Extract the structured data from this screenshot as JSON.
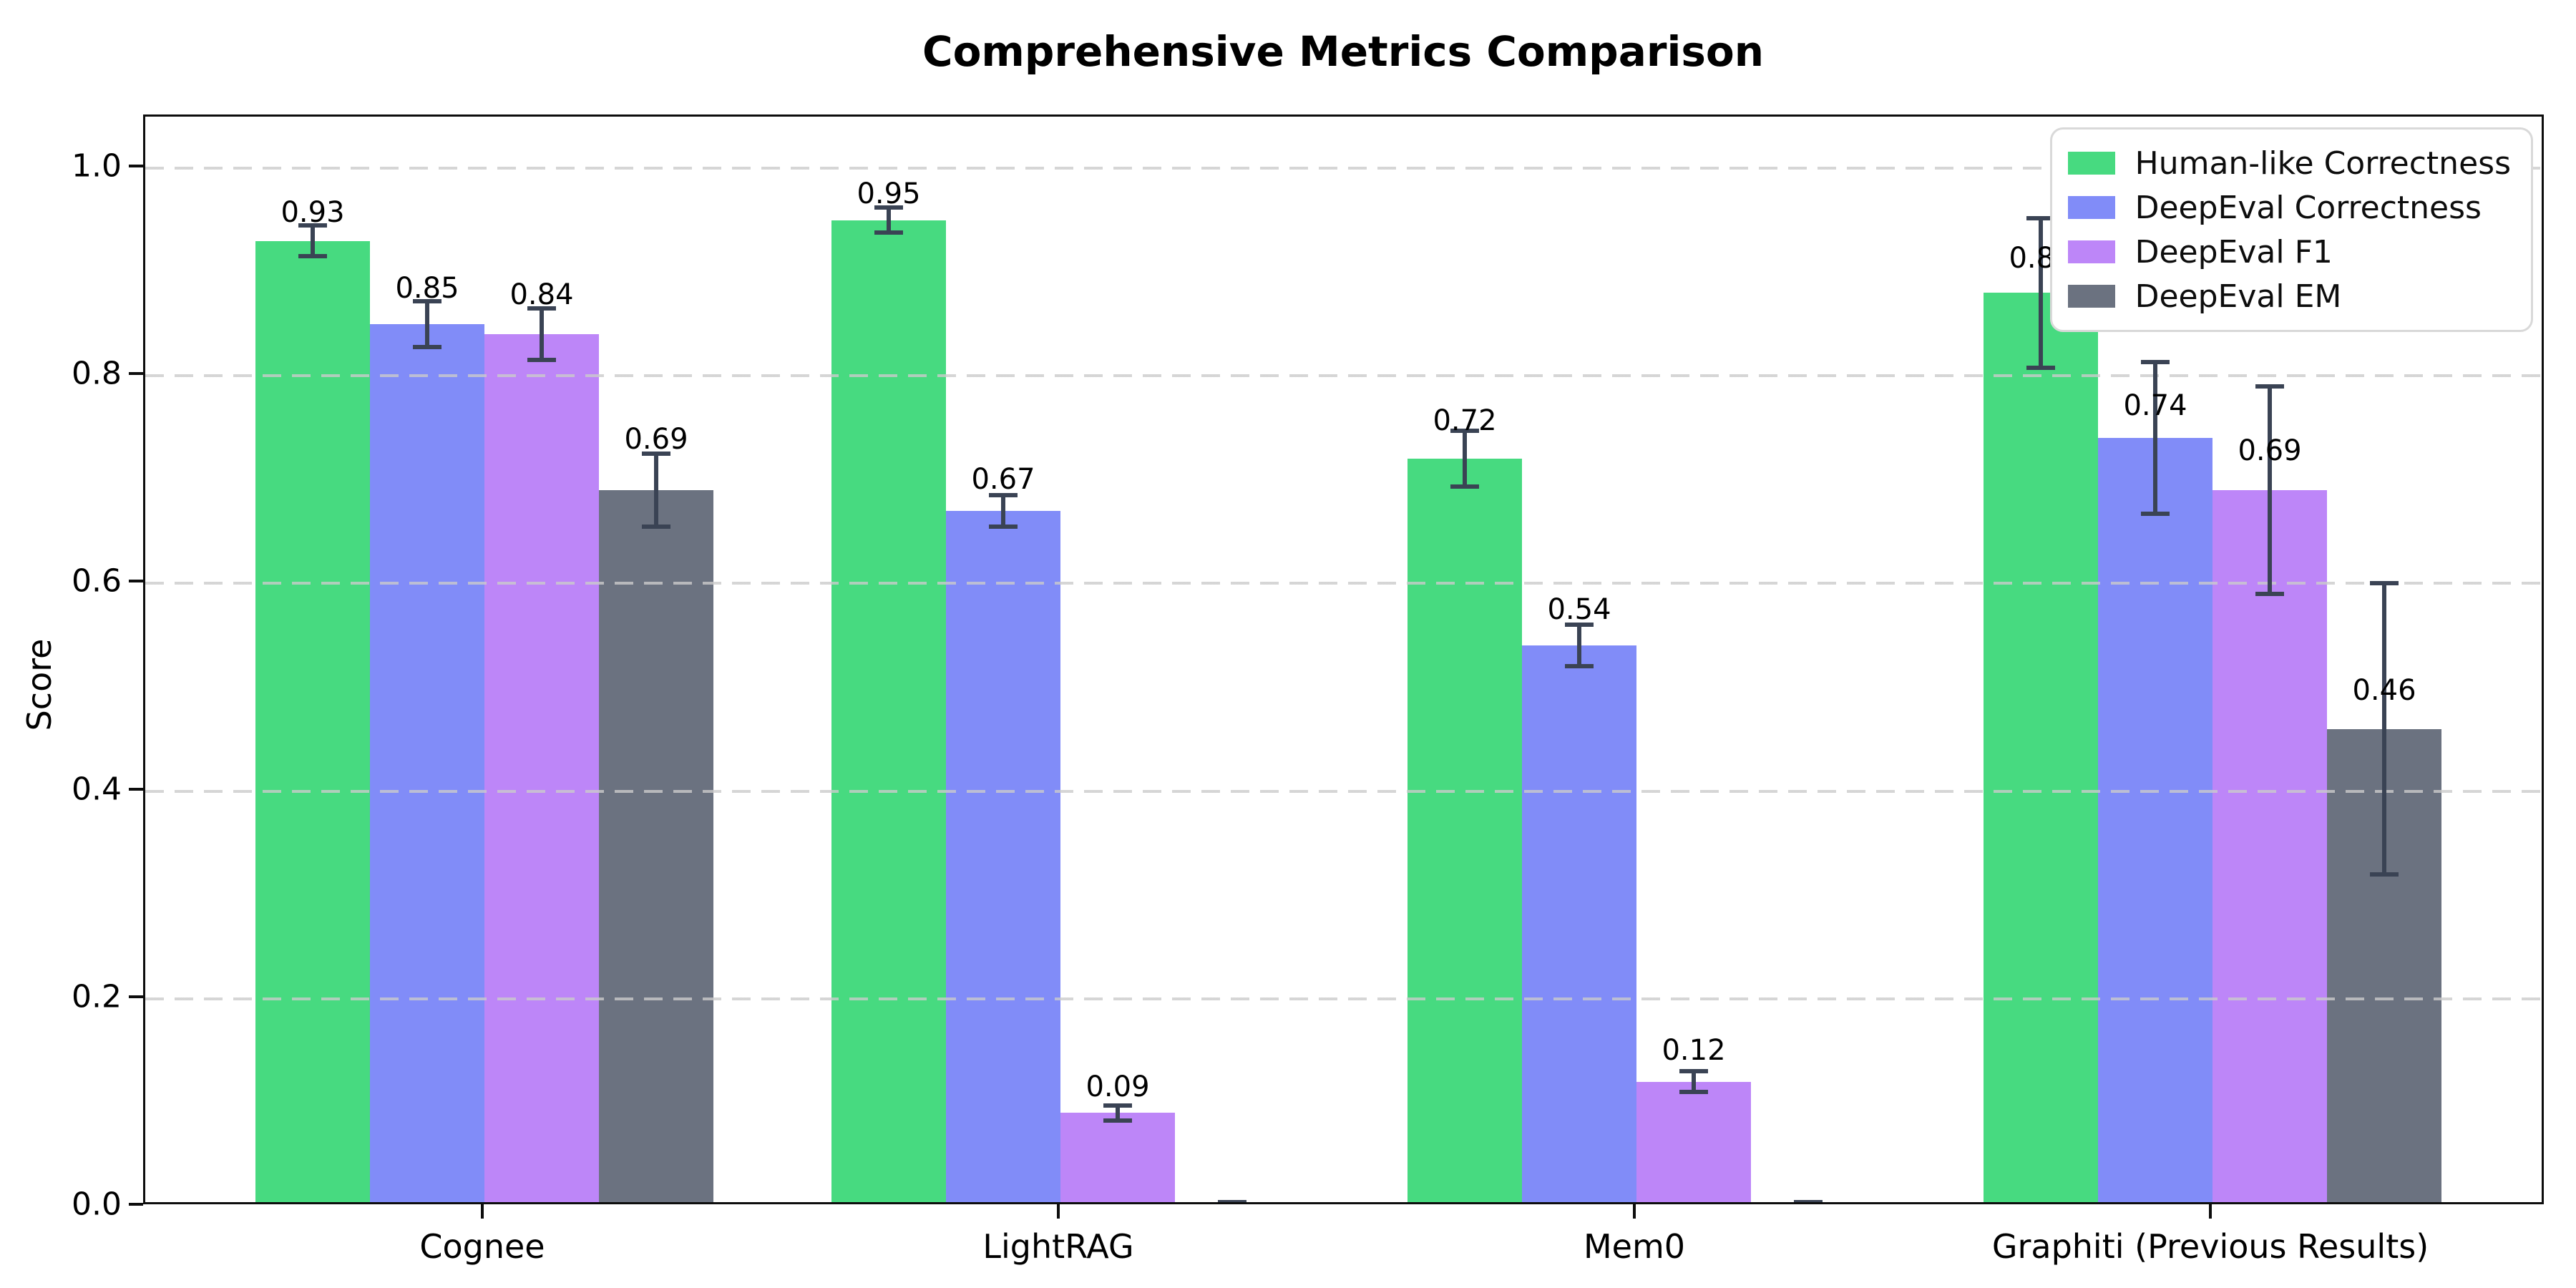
{
  "chart_data": {
    "type": "bar",
    "title": "Comprehensive Metrics Comparison",
    "ylabel": "Score",
    "xlabel": "",
    "ylim": [
      0,
      1.05
    ],
    "ytick_values": [
      0.0,
      0.2,
      0.4,
      0.6,
      0.8,
      1.0
    ],
    "ytick_labels": [
      "0.0",
      "0.2",
      "0.4",
      "0.6",
      "0.8",
      "1.0"
    ],
    "categories": [
      "Cognee",
      "LightRAG",
      "Mem0",
      "Graphiti (Previous Results)"
    ],
    "series": [
      {
        "name": "Human-like Correctness",
        "color": "#47da80",
        "values": [
          0.93,
          0.95,
          0.72,
          0.88
        ],
        "errors": [
          0.015,
          0.012,
          0.027,
          0.072
        ],
        "value_labels": [
          "0.93",
          "0.95",
          "0.72",
          "0.88"
        ],
        "label_centers": [
          0.957,
          0.975,
          0.757,
          0.913
        ]
      },
      {
        "name": "DeepEval Correctness",
        "color": "#818cf8",
        "values": [
          0.85,
          0.67,
          0.54,
          0.74
        ],
        "errors": [
          0.022,
          0.015,
          0.02,
          0.073
        ],
        "value_labels": [
          "0.85",
          "0.67",
          "0.54",
          "0.74"
        ],
        "label_centers": [
          0.884,
          0.7,
          0.575,
          0.771
        ]
      },
      {
        "name": "DeepEval F1",
        "color": "#bd86f8",
        "values": [
          0.84,
          0.09,
          0.12,
          0.69
        ],
        "errors": [
          0.025,
          0.007,
          0.01,
          0.1
        ],
        "value_labels": [
          "0.84",
          "0.09",
          "0.12",
          "0.69"
        ],
        "label_centers": [
          0.878,
          0.115,
          0.15,
          0.728
        ]
      },
      {
        "name": "DeepEval EM",
        "color": "#6b7280",
        "values": [
          0.69,
          0.0,
          0.0,
          0.46
        ],
        "errors": [
          0.035,
          0.004,
          0.004,
          0.14
        ],
        "value_labels": [
          "0.69",
          "",
          "",
          "0.46"
        ],
        "label_centers": [
          0.739,
          null,
          null,
          0.497
        ]
      }
    ],
    "grid": {
      "axis": "y",
      "style": "dashed",
      "color": "#cbcbcb"
    },
    "legend": {
      "position": "upper right"
    },
    "error_bar_color": "#3a4354"
  }
}
